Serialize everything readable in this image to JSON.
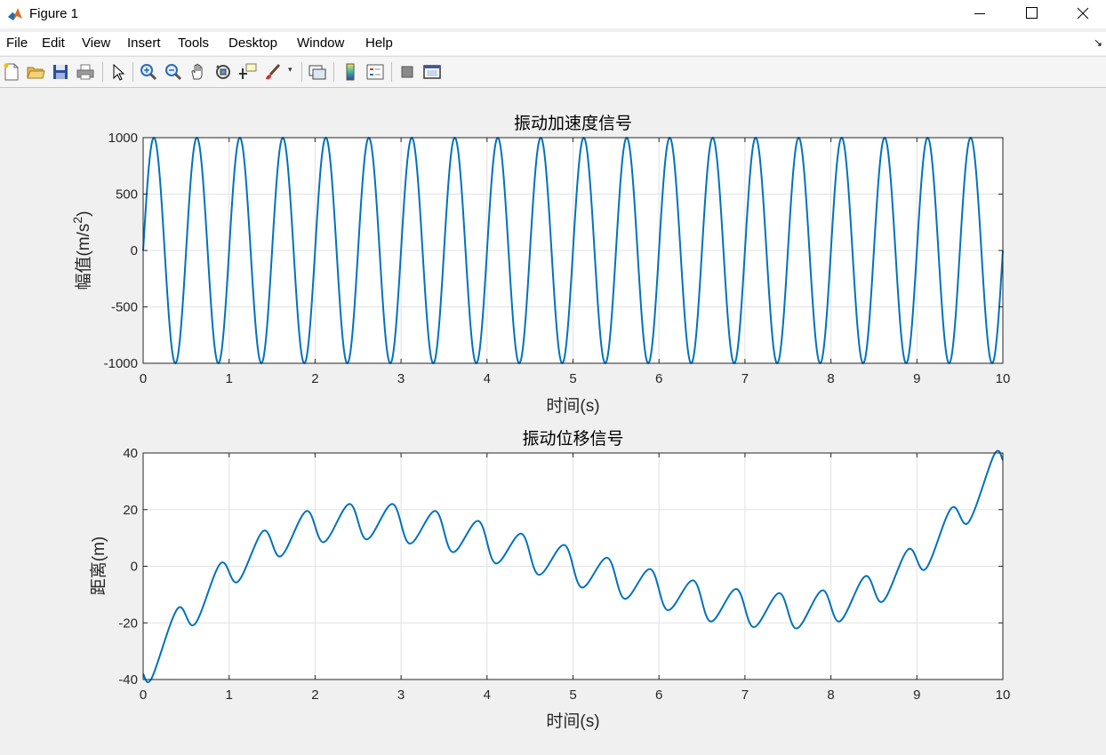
{
  "window": {
    "title": "Figure 1",
    "controls": [
      "minimize-icon",
      "maximize-icon",
      "close-icon"
    ]
  },
  "menu": {
    "items": [
      "File",
      "Edit",
      "View",
      "Insert",
      "Tools",
      "Desktop",
      "Window",
      "Help"
    ]
  },
  "toolbar": {
    "icons": [
      "new-figure-icon",
      "open-file-icon",
      "save-icon",
      "print-icon",
      "select-arrow-icon",
      "zoom-in-icon",
      "zoom-out-icon",
      "pan-hand-icon",
      "rotate-3d-icon",
      "data-cursor-icon",
      "brush-icon",
      "link-plot-icon",
      "colorbar-icon",
      "legend-icon",
      "hide-plot-tools-icon",
      "show-plot-tools-icon"
    ]
  },
  "colors": {
    "line": "#0072bd",
    "grid": "#e2e2e2",
    "axes": "#262626"
  },
  "chart_data": [
    {
      "type": "line",
      "title": "振动加速度信号",
      "xlabel": "时间(s)",
      "ylabel": "幅值(m/s2)",
      "ylabel_parts": {
        "main": "幅值(m/s",
        "sup": "2",
        "close": ")"
      },
      "xlim": [
        0,
        10
      ],
      "ylim": [
        -1000,
        1000
      ],
      "xticks": [
        "0",
        "1",
        "2",
        "3",
        "4",
        "5",
        "6",
        "7",
        "8",
        "9",
        "10"
      ],
      "yticks": [
        "1000",
        "500",
        "0",
        "-500",
        "-1000"
      ],
      "grid": true,
      "series": [
        {
          "function": "1000*sin(2*pi*2*t)",
          "amplitude": 1000,
          "frequency_hz": 2,
          "t_start": 0,
          "t_end": 10
        }
      ]
    },
    {
      "type": "line",
      "title": "振动位移信号",
      "xlabel": "时间(s)",
      "ylabel": "距离(m)",
      "xlim": [
        0,
        10
      ],
      "ylim": [
        -40,
        40
      ],
      "xticks": [
        "0",
        "1",
        "2",
        "3",
        "4",
        "5",
        "6",
        "7",
        "8",
        "9",
        "10"
      ],
      "yticks": [
        "40",
        "20",
        "0",
        "-20",
        "-40"
      ],
      "grid": true,
      "series": [
        {
          "x": [
            0,
            0.1,
            0.4,
            0.6,
            0.9,
            1.1,
            1.4,
            1.6,
            1.9,
            2.1,
            2.4,
            2.6,
            2.9,
            3.1,
            3.4,
            3.6,
            3.9,
            4.1,
            4.4,
            4.6,
            4.9,
            5.1,
            5.4,
            5.6,
            5.9,
            6.1,
            6.4,
            6.6,
            6.9,
            7.1,
            7.4,
            7.6,
            7.9,
            8.1,
            8.4,
            8.6,
            8.9,
            9.1,
            9.4,
            9.6,
            9.9,
            10
          ],
          "y": [
            -38,
            -39.5,
            -15,
            -20.5,
            1,
            -5.5,
            12.5,
            3.5,
            19.5,
            8.5,
            22,
            9.5,
            22,
            8,
            19.5,
            5,
            16,
            1,
            11.5,
            -3,
            7.5,
            -7.5,
            3,
            -11.5,
            -1,
            -15.5,
            -5,
            -19.5,
            -8,
            -21.5,
            -9.5,
            -22,
            -8.5,
            -19.5,
            -3.5,
            -12.5,
            6,
            -1,
            20.5,
            15.5,
            39.5,
            37.5
          ]
        }
      ]
    }
  ]
}
